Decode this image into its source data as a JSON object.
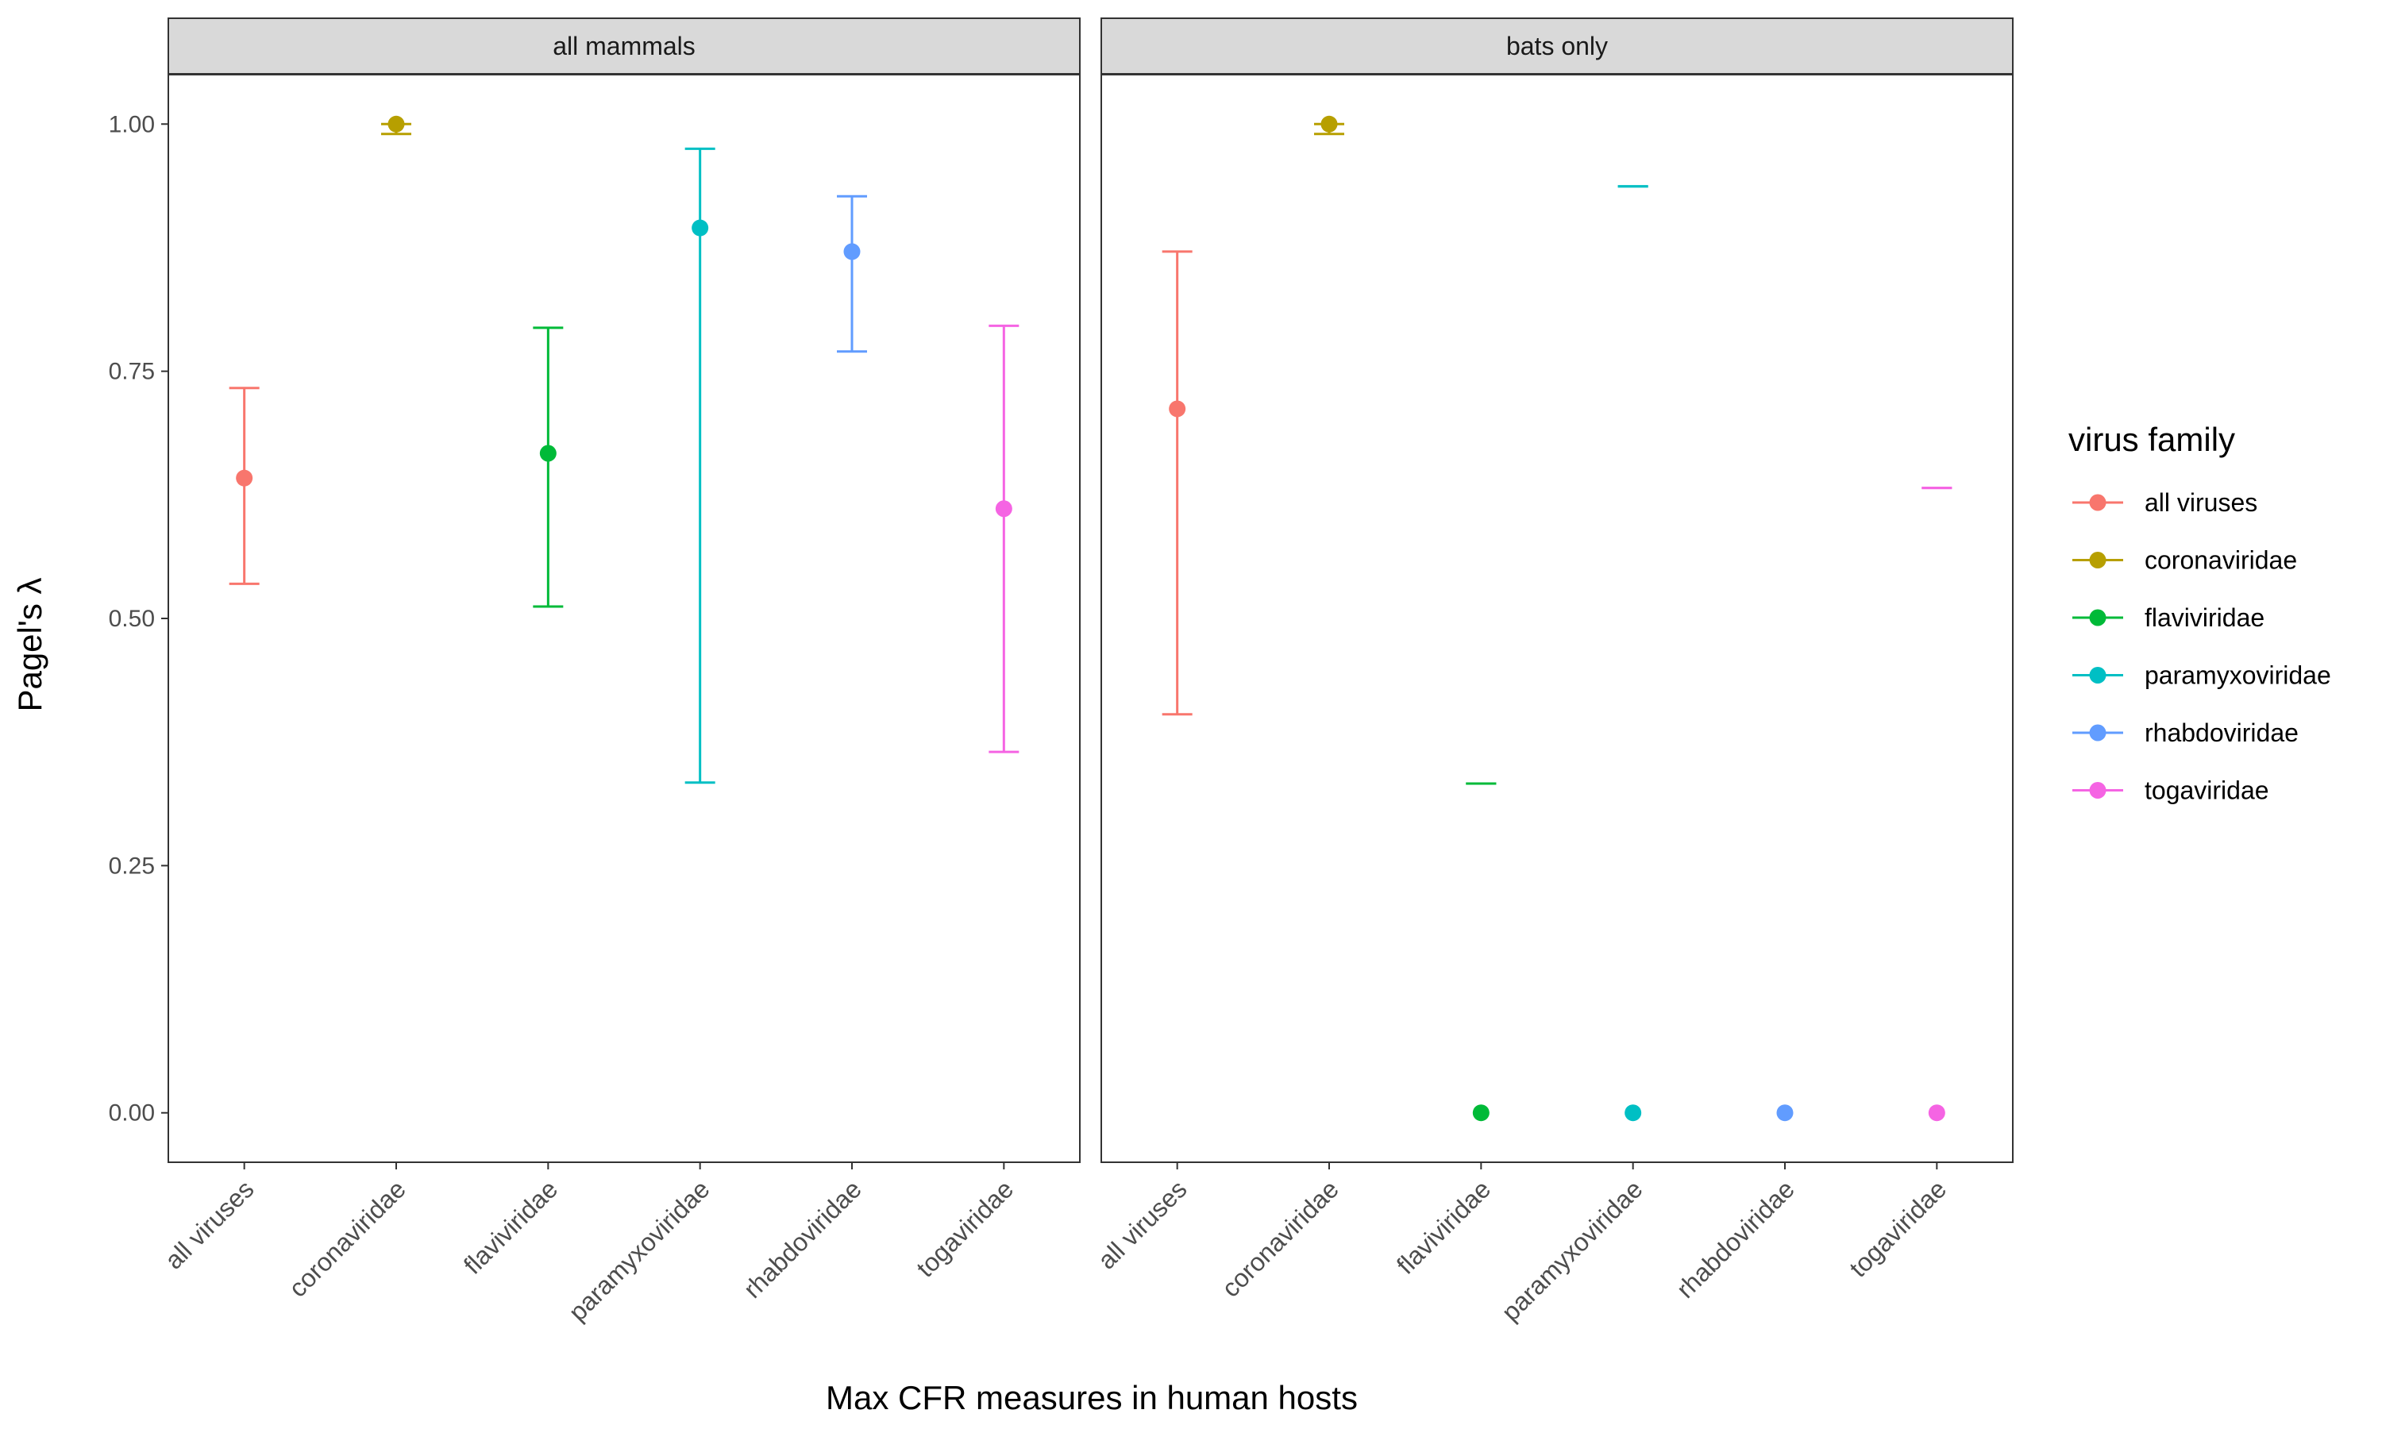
{
  "chart_data": {
    "type": "scatter",
    "subtype": "point-with-errorbars, faceted",
    "xlabel": "Max CFR measures in human hosts",
    "ylabel": "Pagel's λ",
    "ylim": [
      -0.05,
      1.05
    ],
    "yticks": [
      0.0,
      0.25,
      0.5,
      0.75,
      1.0
    ],
    "ytick_labels": [
      "0.00",
      "0.25",
      "0.50",
      "0.75",
      "1.00"
    ],
    "categories": [
      "all viruses",
      "coronaviridae",
      "flaviviridae",
      "paramyxoviridae",
      "rhabdoviridae",
      "togaviridae"
    ],
    "grid": false,
    "legend": {
      "title": "virus family",
      "position": "right",
      "entries": [
        "all viruses",
        "coronaviridae",
        "flaviviridae",
        "paramyxoviridae",
        "rhabdoviridae",
        "togaviridae"
      ]
    },
    "colors": {
      "all viruses": "#F8766D",
      "coronaviridae": "#B79F00",
      "flaviviridae": "#00BA38",
      "paramyxoviridae": "#00BFC4",
      "rhabdoviridae": "#619CFF",
      "togaviridae": "#F564E3"
    },
    "facets": [
      {
        "label": "all mammals",
        "points": [
          {
            "category": "all viruses",
            "value": 0.642,
            "lower": 0.535,
            "upper": 0.733
          },
          {
            "category": "coronaviridae",
            "value": 1.0,
            "lower": 0.99,
            "upper": 1.0
          },
          {
            "category": "flaviviridae",
            "value": 0.667,
            "lower": 0.512,
            "upper": 0.794
          },
          {
            "category": "paramyxoviridae",
            "value": 0.895,
            "lower": 0.334,
            "upper": 0.975
          },
          {
            "category": "rhabdoviridae",
            "value": 0.871,
            "lower": 0.77,
            "upper": 0.927
          },
          {
            "category": "togaviridae",
            "value": 0.611,
            "lower": 0.365,
            "upper": 0.796
          }
        ]
      },
      {
        "label": "bats only",
        "points": [
          {
            "category": "all viruses",
            "value": 0.712,
            "lower": 0.403,
            "upper": 0.871
          },
          {
            "category": "coronaviridae",
            "value": 1.0,
            "lower": 0.99,
            "upper": 1.0
          },
          {
            "category": "flaviviridae",
            "value": 0.0,
            "lower": 0.333,
            "upper": 0.333
          },
          {
            "category": "paramyxoviridae",
            "value": 0.0,
            "lower": 0.937,
            "upper": 0.937
          },
          {
            "category": "rhabdoviridae",
            "value": 0.0,
            "lower": null,
            "upper": null
          },
          {
            "category": "togaviridae",
            "value": 0.0,
            "lower": 0.632,
            "upper": 0.632
          }
        ]
      }
    ]
  }
}
